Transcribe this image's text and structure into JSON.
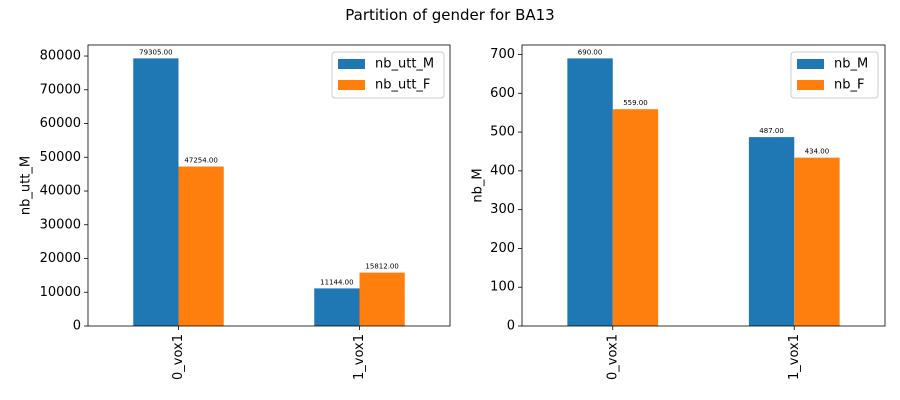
{
  "figure": {
    "title": "Partition of gender for BA13"
  },
  "colors": {
    "series_1": "#1f77b4",
    "series_2": "#ff7f0e"
  },
  "chart_data": [
    {
      "type": "bar",
      "categories": [
        "0_vox1",
        "1_vox1"
      ],
      "series": [
        {
          "name": "nb_utt_M",
          "values": [
            79305,
            11144
          ],
          "labels": [
            "79305.00",
            "11144.00"
          ]
        },
        {
          "name": "nb_utt_F",
          "values": [
            47254,
            15812
          ],
          "labels": [
            "47254.00",
            "15812.00"
          ]
        }
      ],
      "xlabel": "",
      "ylabel": "nb_utt_M",
      "ylim": [
        0,
        83270
      ],
      "yticks": [
        0,
        10000,
        20000,
        30000,
        40000,
        50000,
        60000,
        70000,
        80000
      ],
      "grid": false,
      "legend": "top-right"
    },
    {
      "type": "bar",
      "categories": [
        "0_vox1",
        "1_vox1"
      ],
      "series": [
        {
          "name": "nb_M",
          "values": [
            690,
            487
          ],
          "labels": [
            "690.00",
            "487.00"
          ]
        },
        {
          "name": "nb_F",
          "values": [
            559,
            434
          ],
          "labels": [
            "559.00",
            "434.00"
          ]
        }
      ],
      "xlabel": "",
      "ylabel": "nb_M",
      "ylim": [
        0,
        724.5
      ],
      "yticks": [
        0,
        100,
        200,
        300,
        400,
        500,
        600,
        700
      ],
      "grid": false,
      "legend": "top-right"
    }
  ]
}
